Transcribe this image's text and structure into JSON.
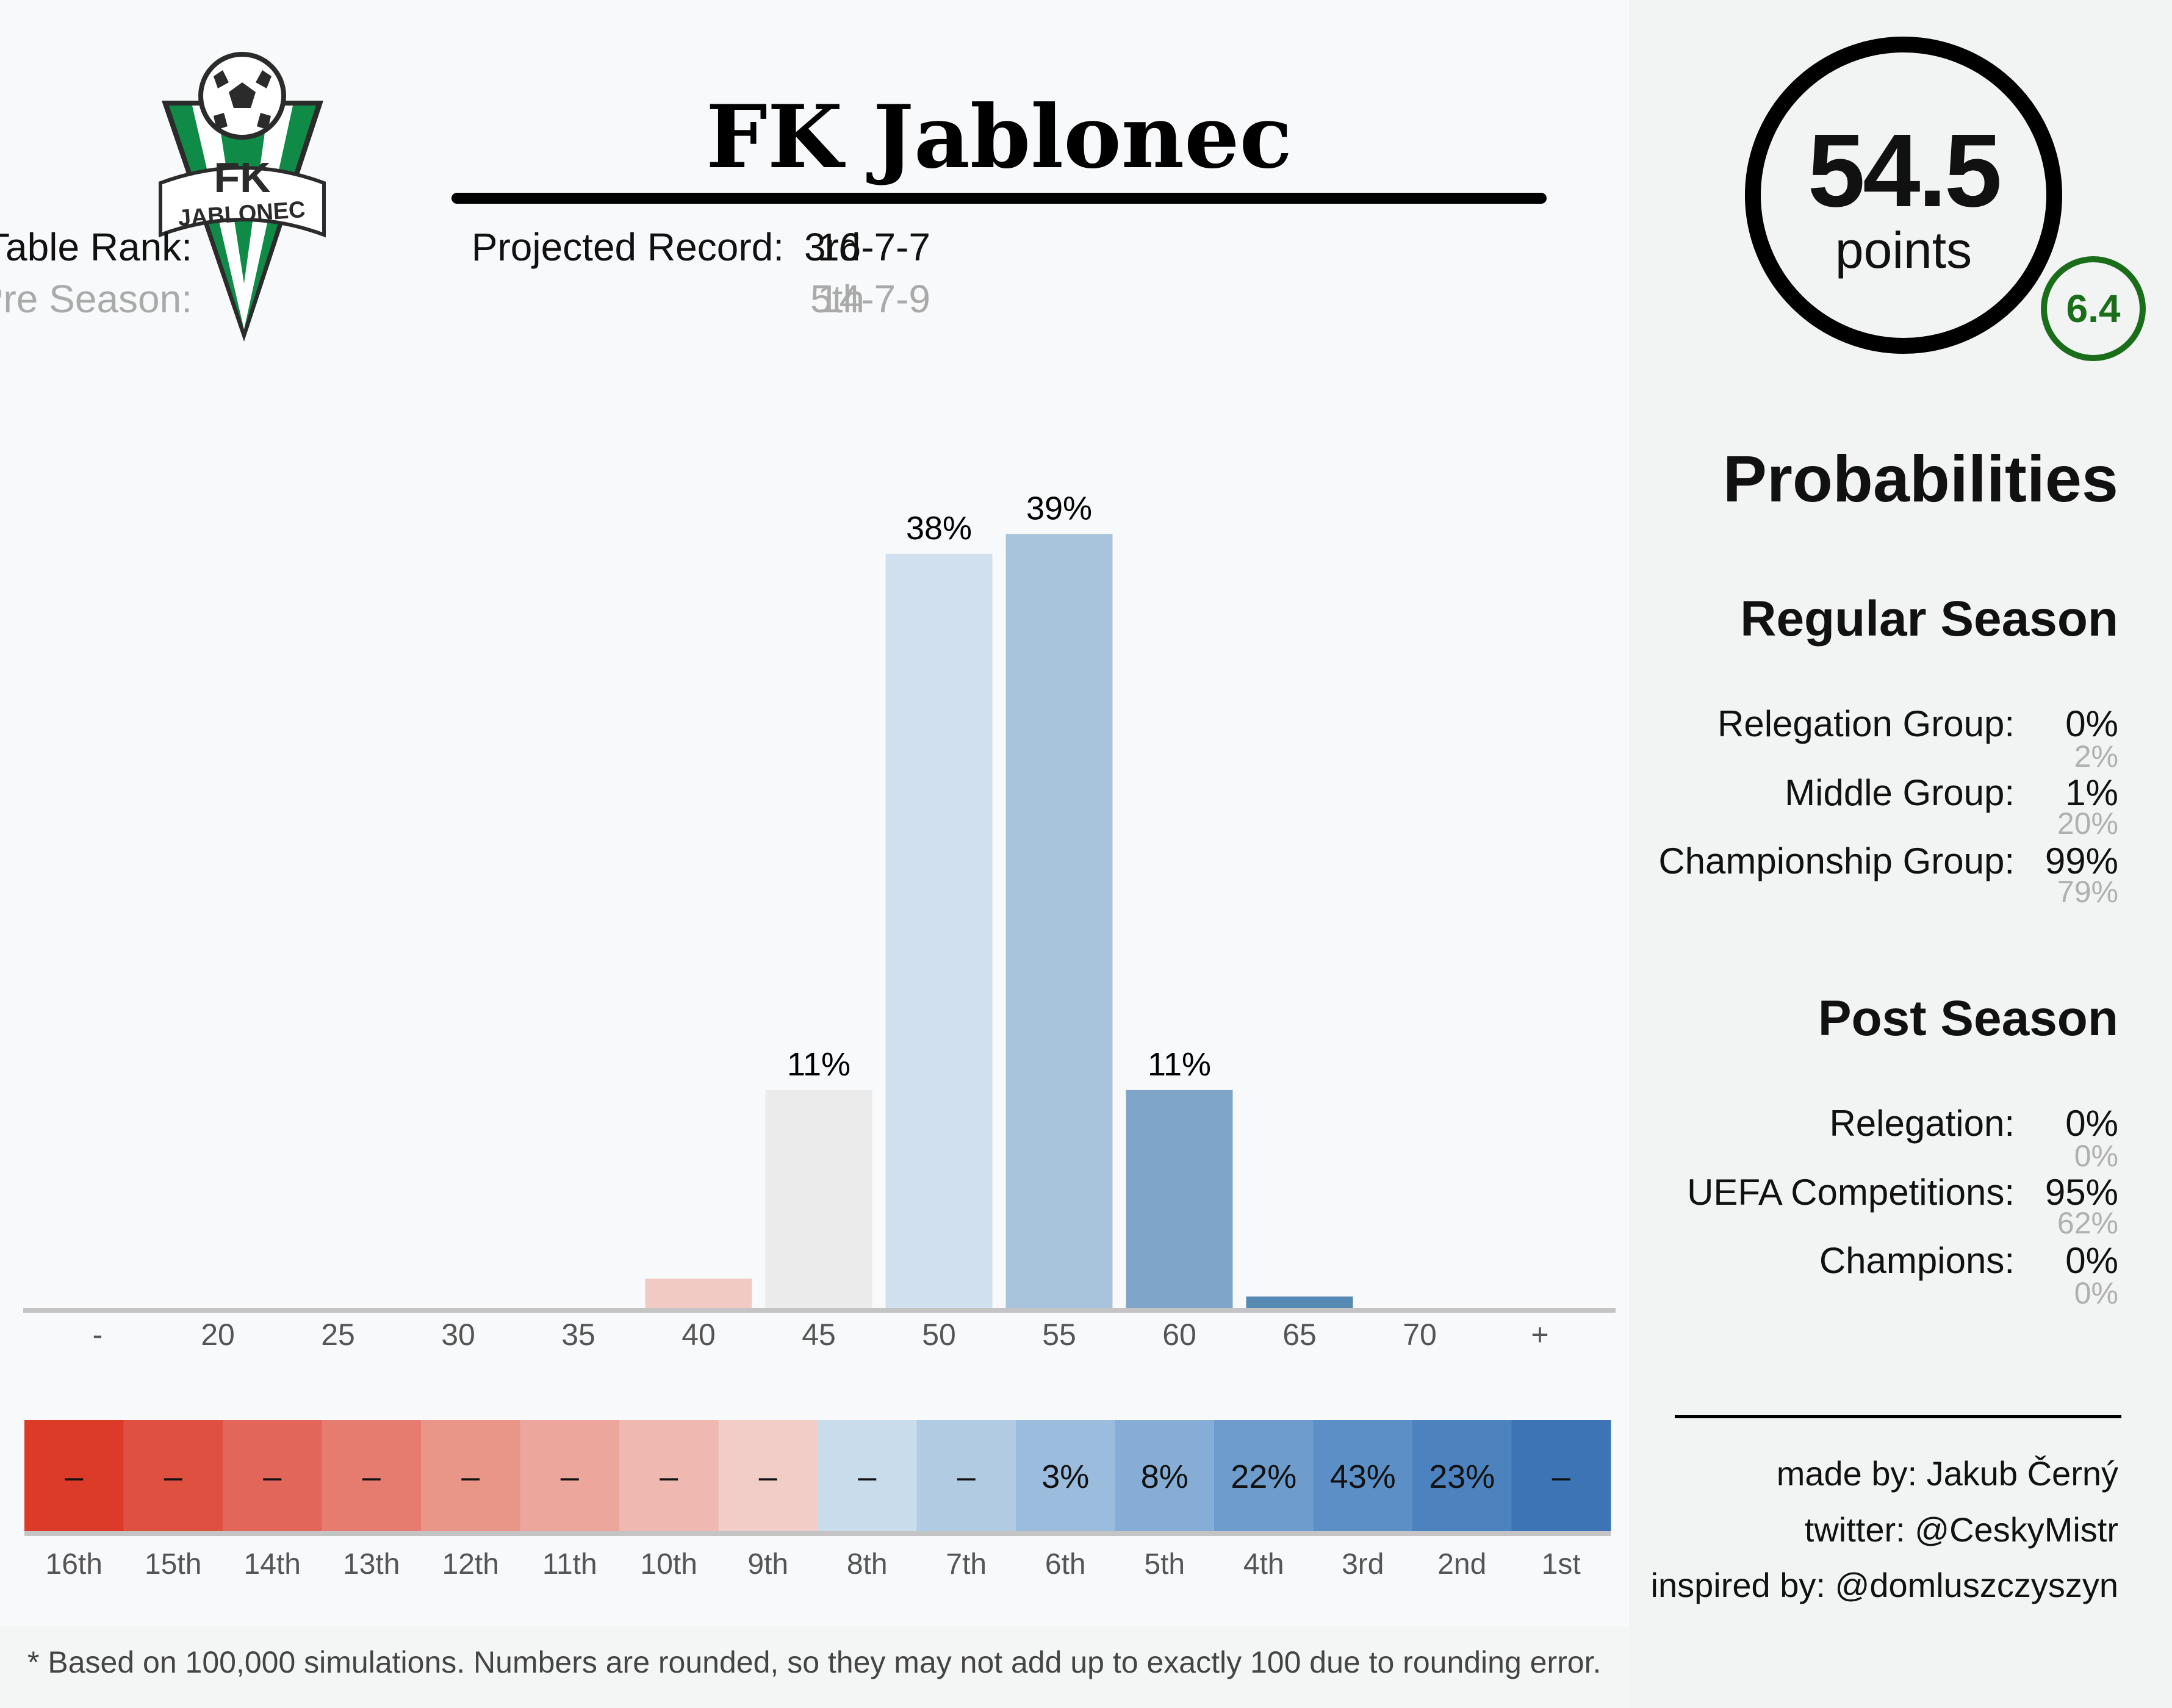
{
  "team": {
    "name": "FK Jablonec",
    "logo_text": "FK",
    "logo_banner": "JABLONEC"
  },
  "header": {
    "table_rank_label": "Table Rank:",
    "table_rank": "3rd",
    "pre_season_label": "Pre Season:",
    "pre_season_rank": "5th",
    "projected_record_label": "Projected Record:",
    "projected_record": "16-7-7",
    "pre_season_record": "14-7-9"
  },
  "points": {
    "value": "54.5",
    "unit": "points",
    "delta": "6.4"
  },
  "probabilities": {
    "title": "Probabilities",
    "regular_season": {
      "title": "Regular Season",
      "items": [
        {
          "label": "Relegation Group:",
          "value": "0%",
          "pre": "2%"
        },
        {
          "label": "Middle Group:",
          "value": "1%",
          "pre": "20%"
        },
        {
          "label": "Championship Group:",
          "value": "99%",
          "pre": "79%"
        }
      ]
    },
    "post_season": {
      "title": "Post Season",
      "items": [
        {
          "label": "Relegation:",
          "value": "0%",
          "pre": "0%"
        },
        {
          "label": "UEFA Competitions:",
          "value": "95%",
          "pre": "62%"
        },
        {
          "label": "Champions:",
          "value": "0%",
          "pre": "0%"
        }
      ]
    }
  },
  "credits": {
    "made_by": "made by: Jakub Černý",
    "twitter": "twitter: @CeskyMistr",
    "inspired_by": "inspired by: @domluszczyszyn"
  },
  "footnote": "* Based on 100,000 simulations. Numbers are rounded, so they may not add up to exactly 100 due to rounding error.",
  "colors": {
    "accent_green": "#1a6e1a",
    "logo_green": "#0f8a47",
    "axis": "#c4c4c4"
  },
  "chart_data": [
    {
      "type": "bar",
      "title": "",
      "xlabel": "",
      "ylabel": "",
      "ylim": [
        0,
        45
      ],
      "categories": [
        "-",
        "20",
        "25",
        "30",
        "35",
        "40",
        "45",
        "50",
        "55",
        "60",
        "65",
        "70",
        "+"
      ],
      "values": [
        0,
        0,
        0,
        0,
        0,
        1.5,
        11,
        38,
        39,
        11,
        0.6,
        0,
        0
      ],
      "labels": [
        "",
        "",
        "",
        "",
        "",
        "",
        "11%",
        "38%",
        "39%",
        "11%",
        "",
        "",
        ""
      ],
      "colors": [
        "#f4f5f5",
        "#f4f5f5",
        "#f4f5f5",
        "#f4f5f5",
        "#f4f5f5",
        "#f1cbc3",
        "#ebebeb",
        "#d0e0ef",
        "#a8c4dc",
        "#7fa6c8",
        "#5689b3",
        "#f4f5f5",
        "#f4f5f5"
      ]
    },
    {
      "type": "heatmap",
      "title": "",
      "categories": [
        "16th",
        "15th",
        "14th",
        "13th",
        "12th",
        "11th",
        "10th",
        "9th",
        "8th",
        "7th",
        "6th",
        "5th",
        "4th",
        "3rd",
        "2nd",
        "1st"
      ],
      "labels": [
        "–",
        "–",
        "–",
        "–",
        "–",
        "–",
        "–",
        "–",
        "–",
        "–",
        "3%",
        "8%",
        "22%",
        "43%",
        "23%",
        "–"
      ],
      "colors": [
        "#dc3b2a",
        "#df5040",
        "#e2665a",
        "#e57c6f",
        "#e99587",
        "#eca69c",
        "#efb8b0",
        "#f2ccc6",
        "#c9dcec",
        "#b1cbe3",
        "#9bbcdc",
        "#86add5",
        "#6e9ccd",
        "#5c8fc6",
        "#4c82be",
        "#3c74b5"
      ]
    }
  ]
}
